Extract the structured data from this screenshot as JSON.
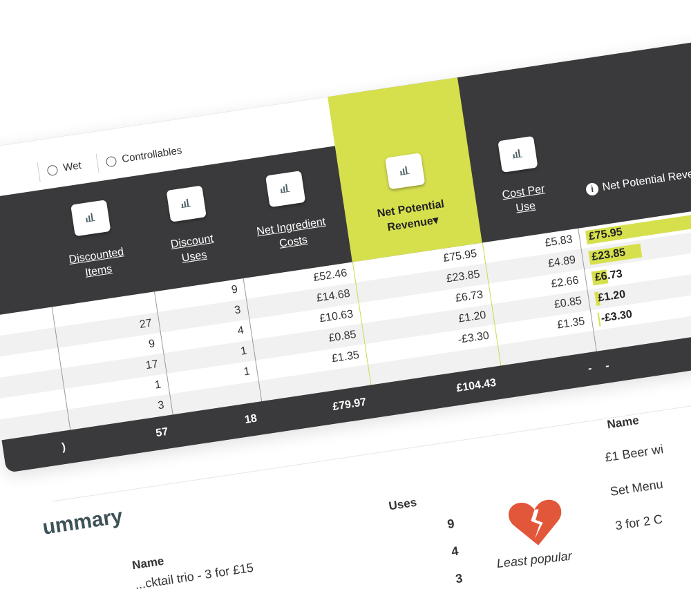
{
  "filters": {
    "wet": "Wet",
    "controllables": "Controllables"
  },
  "table": {
    "columns": [
      {
        "label_1": "Discounted",
        "label_2": "Items"
      },
      {
        "label_1": "Discount",
        "label_2": "Uses"
      },
      {
        "label_1": "Net Ingredient",
        "label_2": "Costs"
      },
      {
        "label_1": "Net Potential",
        "label_2": "Revenue▾"
      },
      {
        "label_1": "Cost Per",
        "label_2": "Use"
      },
      {
        "label_1": "Net Potential Revenue"
      }
    ],
    "rows": [
      {
        "items": "",
        "uses": "9",
        "costs": "£52.46",
        "revenue": "£75.95",
        "cpu": "£5.83",
        "bar_label": "£75.95",
        "bar_value": 75.95
      },
      {
        "items": "27",
        "uses": "3",
        "costs": "£14.68",
        "revenue": "£23.85",
        "cpu": "£4.89",
        "bar_label": "£23.85",
        "bar_value": 23.85
      },
      {
        "items": "9",
        "uses": "4",
        "costs": "£10.63",
        "revenue": "£6.73",
        "cpu": "£2.66",
        "bar_label": "£6.73",
        "bar_value": 6.73
      },
      {
        "items": "17",
        "uses": "1",
        "costs": "£0.85",
        "revenue": "£1.20",
        "cpu": "£0.85",
        "bar_label": "£1.20",
        "bar_value": 1.2
      },
      {
        "items": "1",
        "uses": "1",
        "costs": "£1.35",
        "revenue": "-£3.30",
        "cpu": "£1.35",
        "bar_label": "-£3.30",
        "bar_value": -3.3
      },
      {
        "items": "3",
        "uses": "",
        "costs": "",
        "revenue": "",
        "cpu": "",
        "bar_label": "",
        "bar_value": 0
      }
    ],
    "totals": {
      "prefix": ")",
      "items": "57",
      "uses": "18",
      "costs": "£79.97",
      "revenue": "£104.43",
      "cpu": "-",
      "bar": "-"
    }
  },
  "summary": {
    "title": "ummary",
    "name_header": "Name",
    "uses_header": "Uses",
    "rows": [
      {
        "name": "...cktail trio - 3 for £15",
        "uses": "4"
      }
    ],
    "uses_values": [
      "9",
      "4",
      "3"
    ]
  },
  "least_popular": {
    "caption": "Least popular",
    "name_header": "Name",
    "items": [
      "£1 Beer wi",
      "Set Menu",
      "3 for 2 C"
    ]
  },
  "colors": {
    "header_dark": "#3a3a3c",
    "accent": "#d6e04d",
    "heart": "#e2573a"
  }
}
